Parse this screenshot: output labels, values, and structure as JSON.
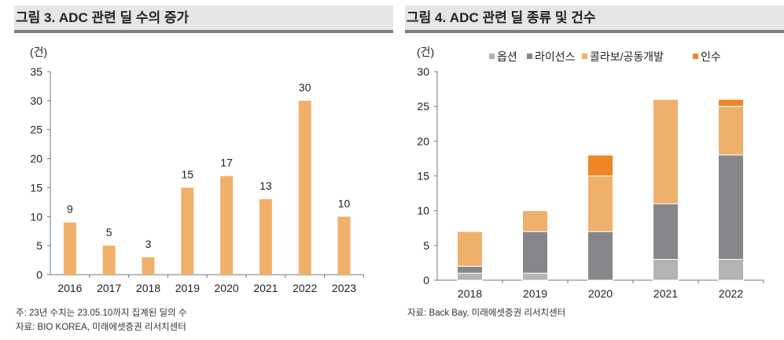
{
  "left": {
    "title": "그림 3. ADC 관련 딜 수의 증가",
    "notes": [
      "주: 23년 수치는 23.05.10까지 집계된 딜의 수",
      "자료: BIO KOREA, 미래에셋증권 리서치센터"
    ]
  },
  "right": {
    "title": "그림 4. ADC 관련 딜 종류 및 건수",
    "notes": [
      "자료: Back Bay, 미래에셋증권 리서치센터"
    ]
  },
  "chart_data": [
    {
      "type": "bar",
      "ylabel": "(건)",
      "categories": [
        "2016",
        "2017",
        "2018",
        "2019",
        "2020",
        "2021",
        "2022",
        "2023"
      ],
      "values": [
        9,
        5,
        3,
        15,
        17,
        13,
        30,
        10
      ],
      "ylim": [
        0,
        35
      ],
      "yticks": [
        0,
        5,
        10,
        15,
        20,
        25,
        30,
        35
      ],
      "color": "#f0b06a",
      "data_labels": true,
      "grid": false
    },
    {
      "type": "stacked-bar",
      "ylabel": "(건)",
      "categories": [
        "2018",
        "2019",
        "2020",
        "2021",
        "2022"
      ],
      "ylim": [
        0,
        30
      ],
      "yticks": [
        0,
        5,
        10,
        15,
        20,
        25,
        30
      ],
      "legend_position": "top",
      "grid": false,
      "series": [
        {
          "name": "옵션",
          "values": [
            1,
            1,
            0,
            3,
            3
          ],
          "color": "#b3b3b3"
        },
        {
          "name": "라이선스",
          "values": [
            1,
            6,
            7,
            8,
            15
          ],
          "color": "#85878a"
        },
        {
          "name": "콜라보/공동개발",
          "values": [
            5,
            3,
            8,
            15,
            7
          ],
          "color": "#efb06c"
        },
        {
          "name": "인수",
          "values": [
            0,
            0,
            3,
            0,
            1
          ],
          "color": "#f08526"
        }
      ]
    }
  ]
}
